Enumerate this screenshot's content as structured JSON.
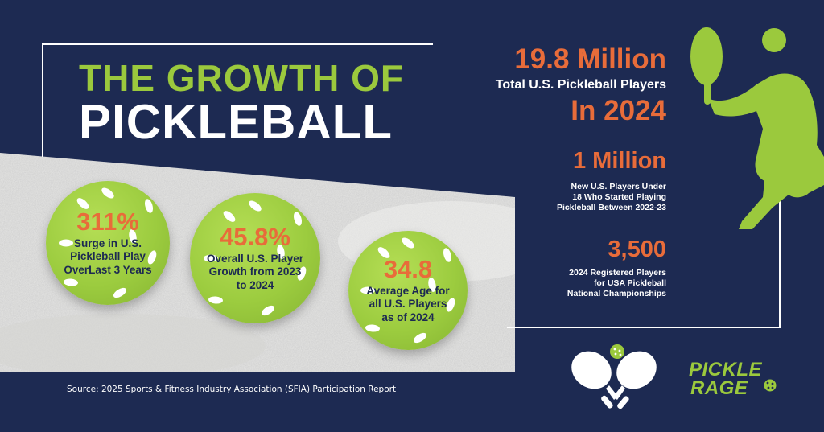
{
  "title": {
    "line1": "THE GROWTH OF",
    "line2": "PICKLEBALL"
  },
  "stats": {
    "total": {
      "value": "19.8 Million",
      "label": "Total U.S. Pickleball Players",
      "year": "In 2024"
    },
    "new_players": {
      "value": "1 Million",
      "label_lines": [
        "New U.S. Players Under",
        "18 Who Started Playing",
        "Pickleball Between 2022-23"
      ]
    },
    "registered": {
      "value": "3,500",
      "label_lines": [
        "2024 Registered Players",
        "for USA Pickleball",
        "National Championships"
      ]
    }
  },
  "balls": [
    {
      "value": "311%",
      "label_lines": [
        "Surge in U.S.",
        "Pickleball Play",
        "OverLast 3 Years"
      ]
    },
    {
      "value": "45.8%",
      "label_lines": [
        "Overall U.S. Player",
        "Growth from 2023",
        "to 2024"
      ]
    },
    {
      "value": "34.8",
      "label_lines": [
        "Average Age for",
        "all U.S. Players",
        "as of 2024"
      ]
    }
  ],
  "source": "Source: 2025 Sports & Fitness Industry Association (SFIA) Participation Report",
  "logo": {
    "line1": "PICKLE",
    "line2": "RAGE"
  },
  "icons": {
    "player": "pickleball-player-silhouette-icon",
    "paddles": "crossed-paddles-icon",
    "ball": "pickleball-icon"
  },
  "colors": {
    "background": "#1d2a52",
    "green": "#9bc93d",
    "orange": "#e86c3a",
    "white": "#ffffff"
  }
}
